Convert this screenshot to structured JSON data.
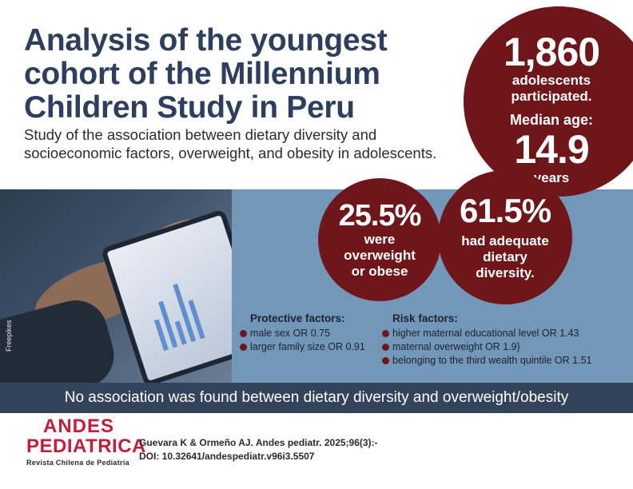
{
  "header": {
    "title_lines": [
      "Analysis of the youngest",
      "cohort of the Millennium",
      "Children Study in Peru"
    ],
    "subtitle_lines": [
      "Study of the association between dietary diversity and",
      "socioeconomic factors, overweight, and obesity in adolescents."
    ]
  },
  "photo": {
    "credit": "Freepikes"
  },
  "stats": {
    "participants": {
      "value": "1,860",
      "label_lines": [
        "adolescents",
        "participated."
      ]
    },
    "median_age": {
      "label": "Median age:",
      "value": "14.9",
      "unit": "years"
    },
    "overweight": {
      "value": "25.5%",
      "label_lines": [
        "were",
        "overweight",
        "or obese"
      ]
    },
    "diversity": {
      "value": "61.5%",
      "label_lines": [
        "had adequate",
        "dietary",
        "diversity."
      ]
    }
  },
  "protective": {
    "heading": "Protective factors:",
    "items": [
      "male sex OR 0.75",
      "larger family size OR 0.91"
    ]
  },
  "risk": {
    "heading": "Risk factors:",
    "items": [
      "higher maternal educational level OR 1.43",
      "maternal overweight OR 1.9}",
      "belonging to the third wealth quintile OR 1.51"
    ]
  },
  "banner": {
    "text": "No association was found between dietary diversity and overweight/obesity"
  },
  "footer": {
    "logo_line1": "ANDES",
    "logo_line2": "PEDIATRICA",
    "logo_tagline": "Revista Chilena de Pediatría",
    "citation_line1": "Guevara K & Ormeño AJ. Andes pediatr. 2025;96(3):-",
    "citation_line2": "DOI: 10.32641/andespediatr.v96i3.5507"
  },
  "colors": {
    "title": "#2d3f5c",
    "circle": "#6e1619",
    "panel": "#7397b8",
    "banner": "#33435a",
    "logo": "#c41e3a"
  }
}
